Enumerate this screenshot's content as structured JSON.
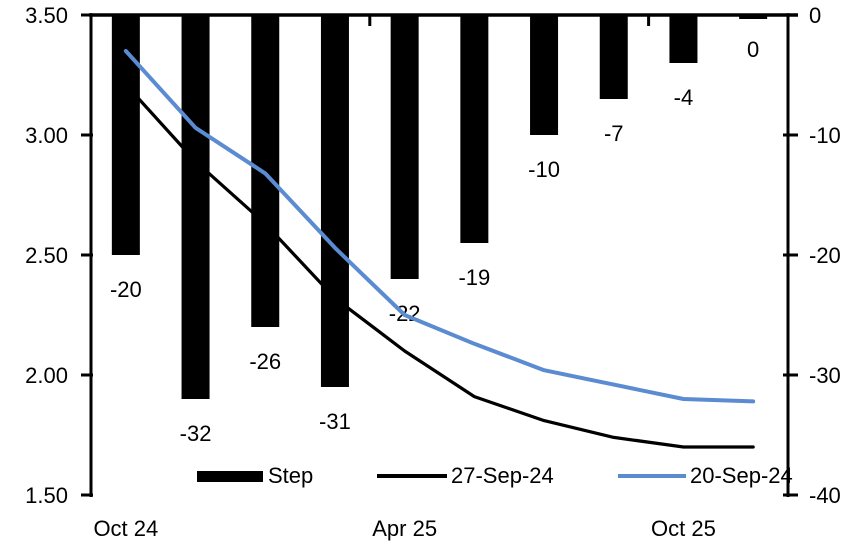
{
  "chart_data": {
    "type": "bar",
    "subtype": "bar+line combo, bars hang from zero line at top on right axis",
    "title": "",
    "n_categories": 10,
    "x_axis": {
      "tick_labels": [
        {
          "label": "Oct 24",
          "category_index": 0
        },
        {
          "label": "Apr 25",
          "category_index": 4
        },
        {
          "label": "Oct 25",
          "category_index": 8
        }
      ],
      "boundary_tick_category_indices": [
        4,
        8
      ]
    },
    "left_axis": {
      "min": 1.5,
      "max": 3.5,
      "tick_labels": [
        "3.50",
        "3.00",
        "2.50",
        "2.00",
        "1.50"
      ]
    },
    "right_axis": {
      "min": -40,
      "max": 0,
      "tick_labels": [
        "0",
        "-10",
        "-20",
        "-30",
        "-40"
      ]
    },
    "bar_series": {
      "name": "Step",
      "axis": "right",
      "color": "#000000",
      "values": [
        -20,
        -32,
        -26,
        -31,
        -22,
        -19,
        -10,
        -7,
        -4,
        0
      ],
      "data_labels": [
        "-20",
        "-32",
        "-26",
        "-31",
        "-22",
        "-19",
        "-10",
        "-7",
        "-4",
        "0"
      ]
    },
    "line_series": [
      {
        "name": "27-Sep-24",
        "axis": "left",
        "color": "#000000",
        "stroke_width": 3.25,
        "values": [
          3.21,
          2.89,
          2.63,
          2.32,
          2.1,
          1.91,
          1.81,
          1.74,
          1.7,
          1.7
        ]
      },
      {
        "name": "20-Sep-24",
        "axis": "left",
        "color": "#5B8BD0",
        "stroke_width": 4,
        "values": [
          3.35,
          3.03,
          2.84,
          2.53,
          2.25,
          2.13,
          2.02,
          1.96,
          1.9,
          1.89
        ]
      }
    ],
    "legend": {
      "position": "bottom",
      "items": [
        {
          "label": "Step",
          "swatch": "bar",
          "color": "#000000"
        },
        {
          "label": "27-Sep-24",
          "swatch": "line",
          "color": "#000000"
        },
        {
          "label": "20-Sep-24",
          "swatch": "line",
          "color": "#5B8BD0"
        }
      ]
    },
    "grid": false,
    "background": "#ffffff"
  }
}
